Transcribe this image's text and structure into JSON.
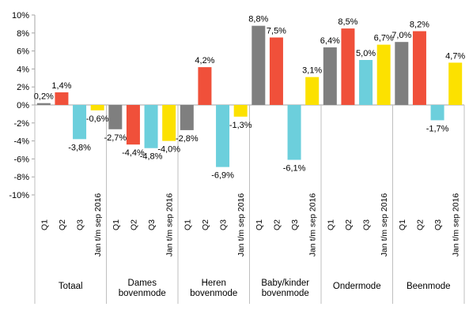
{
  "chart_data": {
    "type": "bar",
    "ylim": [
      -10,
      10
    ],
    "yticks": [
      -10,
      -8,
      -6,
      -4,
      -2,
      0,
      2,
      4,
      6,
      8,
      10
    ],
    "ytick_labels": [
      "-10%",
      "-8%",
      "-6%",
      "-4%",
      "-2%",
      "0%",
      "2%",
      "4%",
      "6%",
      "8%",
      "10%"
    ],
    "grid": false,
    "legend": "none",
    "categories": [
      "Q1",
      "Q2",
      "Q3",
      "Jan t/m sep 2016"
    ],
    "colors": [
      "#7f7f7f",
      "#f0503a",
      "#6ccfdc",
      "#fce100"
    ],
    "groups": [
      {
        "name": "Totaal",
        "values": [
          0.2,
          1.4,
          -3.8,
          -0.6
        ],
        "labels": [
          "0,2%",
          "1,4%",
          "-3,8%",
          "-0,6%"
        ]
      },
      {
        "name": "Dames bovenmode",
        "values": [
          -2.7,
          -4.4,
          -4.8,
          -4.0
        ],
        "labels": [
          "-2,7%",
          "-4,4%",
          "-4,8%",
          "-4,0%"
        ]
      },
      {
        "name": "Heren bovenmode",
        "values": [
          -2.8,
          4.2,
          -6.9,
          -1.3
        ],
        "labels": [
          "-2,8%",
          "4,2%",
          "-6,9%",
          "-1,3%"
        ]
      },
      {
        "name": "Baby/kinder bovenmode",
        "values": [
          8.8,
          7.5,
          -6.1,
          3.1
        ],
        "labels": [
          "8,8%",
          "7,5%",
          "-6,1%",
          "3,1%"
        ]
      },
      {
        "name": "Ondermode",
        "values": [
          6.4,
          8.5,
          5.0,
          6.7
        ],
        "labels": [
          "6,4%",
          "8,5%",
          "5,0%",
          "6,7%"
        ]
      },
      {
        "name": "Beenmode",
        "values": [
          7.0,
          8.2,
          -1.7,
          4.7
        ],
        "labels": [
          "7,0%",
          "8,2%",
          "-1,7%",
          "4,7%"
        ]
      }
    ]
  }
}
